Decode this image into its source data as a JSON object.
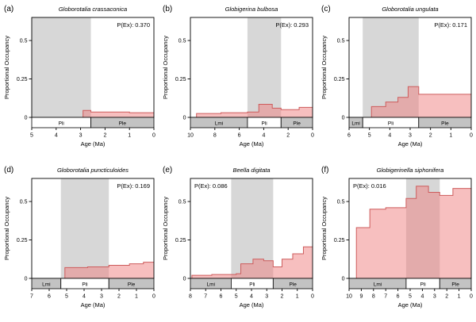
{
  "figure": {
    "background": "#ffffff",
    "text_color": "#000000",
    "colors": {
      "pliocene_band": "#d7d7d7",
      "strip_gray": "#c3c3c3",
      "strip_white": "#ffffff",
      "area_fill": "#f08080",
      "area_fill_opacity": 0.5,
      "area_line": "#cd5c5c",
      "axis": "#000000"
    }
  },
  "chart_data": [
    {
      "type": "area",
      "panel": "(a)",
      "title": "Globorotalia crassaconica",
      "annotation": "P(Ex): 0.370",
      "annotation_side": "right",
      "xlabel": "Age (Ma)",
      "ylabel": "Proportional Occupancy",
      "xlim": [
        5,
        0
      ],
      "ylim": [
        0,
        0.65
      ],
      "xticks": [
        5,
        4,
        3,
        2,
        1,
        0
      ],
      "yticks": [
        0,
        0.25,
        0.5
      ],
      "pliocene_band": [
        5,
        2.58
      ],
      "epoch_strip": [
        {
          "label": "Pli",
          "from": 5,
          "to": 2.58,
          "shade": "white"
        },
        {
          "label": "Ple",
          "from": 2.58,
          "to": 0,
          "shade": "gray"
        }
      ],
      "steps_age_value": [
        [
          2.9,
          0.045
        ],
        [
          2.58,
          0.035
        ],
        [
          1.0,
          0.03
        ]
      ]
    },
    {
      "type": "area",
      "panel": "(b)",
      "title": "Globigerina bulbosa",
      "annotation": "P(Ex): 0.293",
      "annotation_side": "right",
      "xlabel": "Age (Ma)",
      "ylabel": "Proportional Occupancy",
      "xlim": [
        10,
        0
      ],
      "ylim": [
        0,
        0.65
      ],
      "xticks": [
        10,
        8,
        6,
        4,
        2,
        0
      ],
      "yticks": [
        0,
        0.25,
        0.5
      ],
      "pliocene_band": [
        5.33,
        2.58
      ],
      "epoch_strip": [
        {
          "label": "Lmi",
          "from": 10,
          "to": 5.33,
          "shade": "gray"
        },
        {
          "label": "Pli",
          "from": 5.33,
          "to": 2.58,
          "shade": "white"
        },
        {
          "label": "Ple",
          "from": 2.58,
          "to": 0,
          "shade": "gray"
        }
      ],
      "steps_age_value": [
        [
          9.5,
          0.025
        ],
        [
          7.5,
          0.03
        ],
        [
          5.33,
          0.035
        ],
        [
          4.4,
          0.085
        ],
        [
          3.3,
          0.06
        ],
        [
          2.58,
          0.05
        ],
        [
          1.1,
          0.065
        ]
      ]
    },
    {
      "type": "area",
      "panel": "(c)",
      "title": "Globorotalia ungulata",
      "annotation": "P(Ex): 0.171",
      "annotation_side": "right",
      "xlabel": "Age (Ma)",
      "ylabel": "Proportional Occupancy",
      "xlim": [
        6,
        0
      ],
      "ylim": [
        0,
        0.65
      ],
      "xticks": [
        6,
        5,
        4,
        3,
        2,
        1,
        0
      ],
      "yticks": [
        0,
        0.25,
        0.5
      ],
      "pliocene_band": [
        5.33,
        2.58
      ],
      "epoch_strip": [
        {
          "label": "Lmi",
          "from": 6,
          "to": 5.33,
          "shade": "gray"
        },
        {
          "label": "Pli",
          "from": 5.33,
          "to": 2.58,
          "shade": "white"
        },
        {
          "label": "Ple",
          "from": 2.58,
          "to": 0,
          "shade": "gray"
        }
      ],
      "steps_age_value": [
        [
          4.9,
          0.07
        ],
        [
          4.2,
          0.1
        ],
        [
          3.6,
          0.13
        ],
        [
          3.1,
          0.2
        ],
        [
          2.58,
          0.15
        ]
      ]
    },
    {
      "type": "area",
      "panel": "(d)",
      "title": "Globorotalia puncticuloides",
      "annotation": "P(Ex): 0.169",
      "annotation_side": "right",
      "xlabel": "Age (Ma)",
      "ylabel": "Proportional Occupancy",
      "xlim": [
        7,
        0
      ],
      "ylim": [
        0,
        0.65
      ],
      "xticks": [
        7,
        6,
        5,
        4,
        3,
        2,
        1,
        0
      ],
      "yticks": [
        0,
        0.25,
        0.5
      ],
      "pliocene_band": [
        5.33,
        2.58
      ],
      "epoch_strip": [
        {
          "label": "Lmi",
          "from": 7,
          "to": 5.33,
          "shade": "gray"
        },
        {
          "label": "Pli",
          "from": 5.33,
          "to": 2.58,
          "shade": "white"
        },
        {
          "label": "Ple",
          "from": 2.58,
          "to": 0,
          "shade": "gray"
        }
      ],
      "steps_age_value": [
        [
          5.1,
          0.07
        ],
        [
          3.8,
          0.075
        ],
        [
          2.58,
          0.085
        ],
        [
          1.4,
          0.095
        ],
        [
          0.6,
          0.105
        ]
      ]
    },
    {
      "type": "area",
      "panel": "(e)",
      "title": "Beella digitata",
      "annotation": "P(Ex): 0.086",
      "annotation_side": "left",
      "xlabel": "Age (Ma)",
      "ylabel": "Proportional Occupancy",
      "xlim": [
        8,
        0
      ],
      "ylim": [
        0,
        0.65
      ],
      "xticks": [
        8,
        7,
        6,
        5,
        4,
        3,
        2,
        1,
        0
      ],
      "yticks": [
        0,
        0.25,
        0.5
      ],
      "pliocene_band": [
        5.33,
        2.58
      ],
      "epoch_strip": [
        {
          "label": "Lmi",
          "from": 8,
          "to": 5.33,
          "shade": "gray"
        },
        {
          "label": "Pli",
          "from": 5.33,
          "to": 2.58,
          "shade": "white"
        },
        {
          "label": "Ple",
          "from": 2.58,
          "to": 0,
          "shade": "gray"
        }
      ],
      "steps_age_value": [
        [
          7.9,
          0.02
        ],
        [
          6.6,
          0.025
        ],
        [
          5.0,
          0.03
        ],
        [
          4.7,
          0.095
        ],
        [
          3.9,
          0.125
        ],
        [
          3.2,
          0.115
        ],
        [
          2.58,
          0.075
        ],
        [
          2.0,
          0.125
        ],
        [
          1.3,
          0.16
        ],
        [
          0.6,
          0.205
        ]
      ]
    },
    {
      "type": "area",
      "panel": "(f)",
      "title": "Globigerinella siphonifera",
      "annotation": "P(Ex): 0.016",
      "annotation_side": "left",
      "xlabel": "Age (Ma)",
      "ylabel": "Proportional Occupancy",
      "xlim": [
        10,
        0
      ],
      "ylim": [
        0,
        0.65
      ],
      "xticks": [
        10,
        9,
        8,
        7,
        6,
        5,
        4,
        3,
        2,
        1,
        0
      ],
      "yticks": [
        0,
        0.25,
        0.5
      ],
      "pliocene_band": [
        5.33,
        2.58
      ],
      "epoch_strip": [
        {
          "label": "Lmi",
          "from": 10,
          "to": 5.33,
          "shade": "gray"
        },
        {
          "label": "Pli",
          "from": 5.33,
          "to": 2.58,
          "shade": "white"
        },
        {
          "label": "Ple",
          "from": 2.58,
          "to": 0,
          "shade": "gray"
        }
      ],
      "steps_age_value": [
        [
          9.4,
          0.33
        ],
        [
          8.3,
          0.45
        ],
        [
          7.0,
          0.46
        ],
        [
          5.33,
          0.52
        ],
        [
          4.5,
          0.6
        ],
        [
          3.5,
          0.56
        ],
        [
          2.58,
          0.54
        ],
        [
          1.5,
          0.585
        ]
      ]
    }
  ]
}
